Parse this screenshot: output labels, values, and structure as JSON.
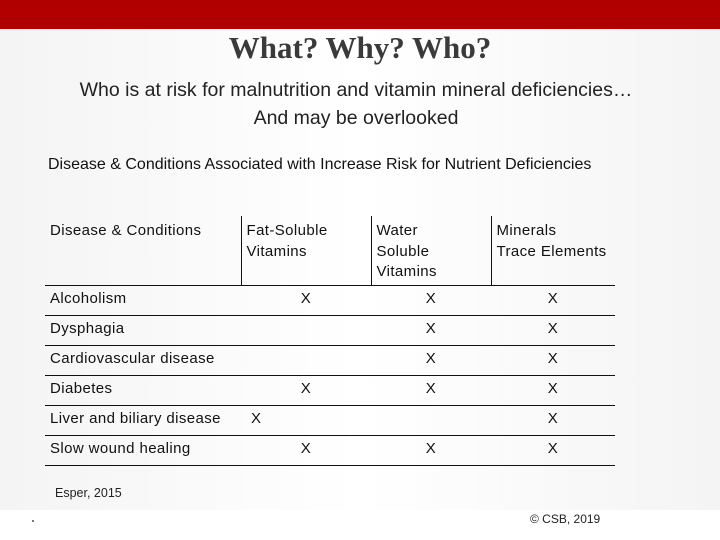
{
  "slide": {
    "title": "What? Why? Who?",
    "subtitle_line1": "Who is at risk for malnutrition and vitamin mineral deficiencies…",
    "subtitle_line2": "And may be overlooked",
    "section_heading": "Disease & Conditions Associated with Increase Risk for Nutrient Deficiencies",
    "citation": "Esper, 2015",
    "copyright": "© CSB, 2019"
  },
  "table": {
    "headers": {
      "condition": "Disease & Conditions",
      "fat_soluble_line1": "Fat-Soluble",
      "fat_soluble_line2": "Vitamins",
      "water_soluble_line1": "Water",
      "water_soluble_line2": "Soluble",
      "water_soluble_line3": "Vitamins",
      "minerals_line1": "Minerals",
      "minerals_line2": "Trace Elements"
    },
    "rows": [
      {
        "condition": "Alcoholism",
        "fat": "X",
        "water": "X",
        "minerals": "X"
      },
      {
        "condition": "Dysphagia",
        "fat": "",
        "water": "X",
        "minerals": "X"
      },
      {
        "condition": "Cardiovascular disease",
        "fat": "",
        "water": "X",
        "minerals": "X"
      },
      {
        "condition": "Diabetes",
        "fat": "X",
        "water": "X",
        "minerals": "X"
      },
      {
        "condition": "Liver and biliary disease",
        "fat": "X",
        "water": "",
        "minerals": "X"
      },
      {
        "condition": "Slow wound healing",
        "fat": "X",
        "water": "X",
        "minerals": "X"
      }
    ]
  },
  "colors": {
    "top_bar": "#b10000",
    "text": "#111111"
  }
}
